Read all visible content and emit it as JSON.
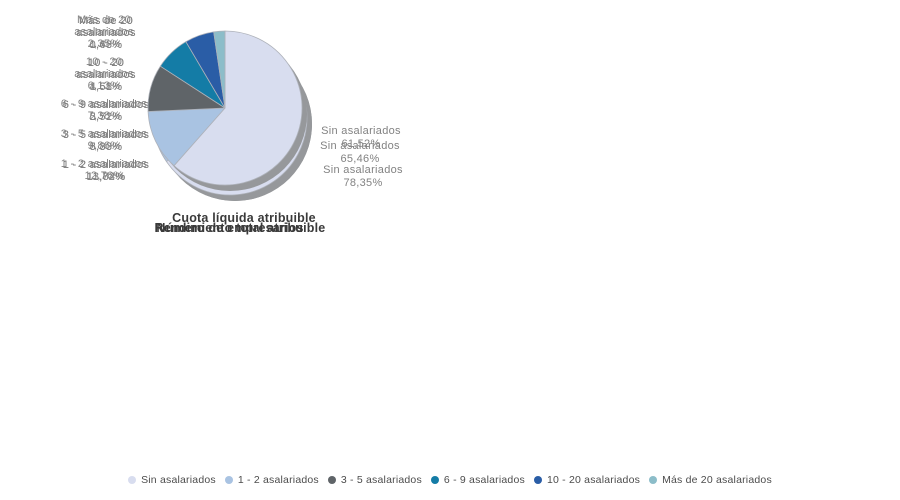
{
  "style": {
    "background": "#ffffff",
    "shadow_color": "#96989b",
    "slice_border_color": "#aeb2ba",
    "label_text_color": "#828282",
    "title_text_color": "#3a3a3a",
    "legend_text_color": "#4c4c4c"
  },
  "legend": {
    "items": [
      {
        "label": "Sin asalariados",
        "color": "#d8ddef"
      },
      {
        "label": "1 - 2 asalariados",
        "color": "#a9c3e2"
      },
      {
        "label": "3 - 5 asalariados",
        "color": "#5f6468"
      },
      {
        "label": "6 - 9 asalariados",
        "color": "#147ca6"
      },
      {
        "label": "10 - 20 asalariados",
        "color": "#2a5da6"
      },
      {
        "label": "Más de 20 asalariados",
        "color": "#8cbdc9"
      }
    ]
  },
  "chart_data": [
    {
      "type": "pie",
      "title": "Número de empresarios",
      "unit": "%",
      "slices": [
        {
          "label": "Sin asalariados",
          "label_lines": [
            "Sin asalariados"
          ],
          "value": 78.35,
          "display": "78,35%",
          "color": "#d8ddef"
        },
        {
          "label": "1 - 2 asalariados",
          "label_lines": [
            "1 - 2 asalariados"
          ],
          "value": 11.72,
          "display": "11,72%",
          "color": "#a9c3e2"
        },
        {
          "label": "3 - 5 asalariados",
          "label_lines": [
            "3 - 5 asalariados"
          ],
          "value": 5.3,
          "display": "5,30%",
          "color": "#5f6468"
        },
        {
          "label": "6 - 9 asalariados",
          "label_lines": [
            "6 - 9 asalariados"
          ],
          "value": 2.52,
          "display": "2,52%",
          "color": "#147ca6"
        },
        {
          "label": "10 - 20 asalariados",
          "label_lines": [
            "10 - 20",
            "asalariados"
          ],
          "value": 1.68,
          "display": "1,68%",
          "color": "#2a5da6"
        },
        {
          "label": "Más de 20 asalariados",
          "label_lines": [
            "Más de 20",
            "asalariados"
          ],
          "value": 0.43,
          "display": "0,43%",
          "color": "#8cbdc9"
        }
      ]
    },
    {
      "type": "pie",
      "title": "Rendimiento total atribuible",
      "unit": "%",
      "slices": [
        {
          "label": "Sin asalariados",
          "label_lines": [
            "Sin asalariados"
          ],
          "value": 65.46,
          "display": "65,46%",
          "color": "#d8ddef"
        },
        {
          "label": "1 - 2 asalariados",
          "label_lines": [
            "1 - 2 asalariados"
          ],
          "value": 13.84,
          "display": "13,84%",
          "color": "#a9c3e2"
        },
        {
          "label": "3 - 5 asalariados",
          "label_lines": [
            "3 - 5 asalariados"
          ],
          "value": 8.83,
          "display": "8,83%",
          "color": "#5f6468"
        },
        {
          "label": "6 - 9 asalariados",
          "label_lines": [
            "6 - 9 asalariados"
          ],
          "value": 5.71,
          "display": "5,71%",
          "color": "#147ca6"
        },
        {
          "label": "10 - 20 asalariados",
          "label_lines": [
            "10 - 20",
            "asalariados"
          ],
          "value": 4.51,
          "display": "4,51%",
          "color": "#2a5da6"
        },
        {
          "label": "Más de 20 asalariados",
          "label_lines": [
            "Más de 20",
            "asalariados"
          ],
          "value": 1.66,
          "display": "1,66%",
          "color": "#8cbdc9"
        }
      ]
    },
    {
      "type": "pie",
      "title": "Cuota líquida atribuible",
      "unit": "%",
      "slices": [
        {
          "label": "Sin asalariados",
          "label_lines": [
            "Sin asalariados"
          ],
          "value": 61.52,
          "display": "61,52%",
          "color": "#d8ddef"
        },
        {
          "label": "1 - 2 asalariados",
          "label_lines": [
            "1 - 2 asalariados"
          ],
          "value": 12.76,
          "display": "12,76%",
          "color": "#a9c3e2"
        },
        {
          "label": "3 - 5 asalariados",
          "label_lines": [
            "3 - 5 asalariados"
          ],
          "value": 9.86,
          "display": "9,86%",
          "color": "#5f6468"
        },
        {
          "label": "6 - 9 asalariados",
          "label_lines": [
            "6 - 9 asalariados"
          ],
          "value": 7.38,
          "display": "7,38%",
          "color": "#147ca6"
        },
        {
          "label": "10 - 20 asalariados",
          "label_lines": [
            "10 - 20",
            "asalariados"
          ],
          "value": 6.13,
          "display": "6,13%",
          "color": "#2a5da6"
        },
        {
          "label": "Más de 20 asalariados",
          "label_lines": [
            "Más de 20",
            "asalariados"
          ],
          "value": 2.35,
          "display": "2,35%",
          "color": "#8cbdc9"
        }
      ]
    }
  ]
}
